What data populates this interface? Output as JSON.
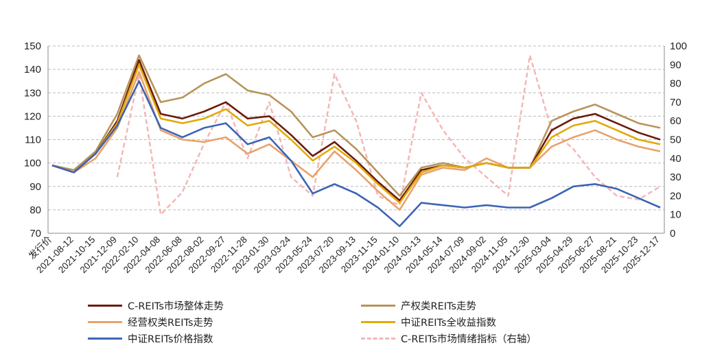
{
  "chart_data": {
    "type": "line",
    "title": "",
    "xlabel": "",
    "ylabel": "",
    "ylim": [
      70,
      150
    ],
    "y_ticks": [
      70,
      80,
      90,
      100,
      110,
      120,
      130,
      140,
      150
    ],
    "y2lim": [
      0,
      100
    ],
    "y2_ticks": [
      0,
      10,
      20,
      30,
      40,
      50,
      60,
      70,
      80,
      90,
      100
    ],
    "grid": "horizontal dashed",
    "legend_position": "bottom",
    "categories": [
      "发行价",
      "2021-08-12",
      "2021-10-15",
      "2021-12-09",
      "2022-02-10",
      "2022-04-08",
      "2022-06-08",
      "2022-08-02",
      "2022-09-27",
      "2022-11-28",
      "2023-01-30",
      "2023-03-24",
      "2023-05-24",
      "2023-07-20",
      "2023-09-13",
      "2023-11-15",
      "2024-01-10",
      "2024-03-13",
      "2024-05-14",
      "2024-07-09",
      "2024-09-02",
      "2024-11-05",
      "2024-12-30",
      "2025-03-04",
      "2025-04-29",
      "2025-06-27",
      "2025-08-21",
      "2025-10-23",
      "2025-12-17"
    ],
    "series": [
      {
        "name": "C-REITs市场整体走势",
        "color": "#6b1a0a",
        "axis": "left",
        "values": [
          99,
          96,
          104,
          118,
          144,
          121,
          119,
          122,
          126,
          119,
          120,
          112,
          103,
          109,
          101,
          92,
          84,
          97,
          99,
          98,
          100,
          98,
          98,
          114,
          119,
          121,
          117,
          113,
          110
        ]
      },
      {
        "name": "产权类REITs走势",
        "color": "#b8935a",
        "axis": "left",
        "values": [
          99,
          97,
          105,
          121,
          146,
          126,
          128,
          134,
          138,
          131,
          129,
          122,
          111,
          114,
          106,
          96,
          86,
          98,
          100,
          98,
          100,
          98,
          98,
          118,
          122,
          125,
          121,
          117,
          115
        ]
      },
      {
        "name": "经营权类REITs走势",
        "color": "#e8a26a",
        "axis": "left",
        "values": [
          99,
          96,
          102,
          115,
          139,
          114,
          110,
          109,
          111,
          104,
          108,
          101,
          94,
          105,
          97,
          88,
          80,
          95,
          98,
          97,
          102,
          98,
          98,
          107,
          111,
          114,
          110,
          107,
          105
        ]
      },
      {
        "name": "中证REITs全收益指数",
        "color": "#e0aa0a",
        "axis": "left",
        "values": [
          99,
          96,
          104,
          117,
          142,
          119,
          117,
          119,
          123,
          116,
          118,
          110,
          101,
          107,
          100,
          91,
          83,
          96,
          99,
          98,
          100,
          98,
          98,
          111,
          116,
          118,
          114,
          110,
          108
        ]
      },
      {
        "name": "中证REITs价格指数",
        "color": "#3c64b4",
        "axis": "left",
        "values": [
          99,
          96,
          104,
          116,
          135,
          115,
          111,
          115,
          117,
          108,
          111,
          101,
          87,
          91,
          87,
          81,
          73,
          83,
          82,
          81,
          82,
          81,
          81,
          85,
          90,
          91,
          89,
          85,
          81
        ]
      },
      {
        "name": "C-REITs市场情绪指标（右轴）",
        "color": "#f4b6b6",
        "axis": "right",
        "values": [
          null,
          null,
          null,
          30,
          85,
          10,
          22,
          48,
          70,
          40,
          70,
          30,
          20,
          85,
          60,
          20,
          15,
          75,
          55,
          40,
          30,
          20,
          95,
          55,
          45,
          30,
          20,
          18,
          25
        ]
      }
    ]
  }
}
